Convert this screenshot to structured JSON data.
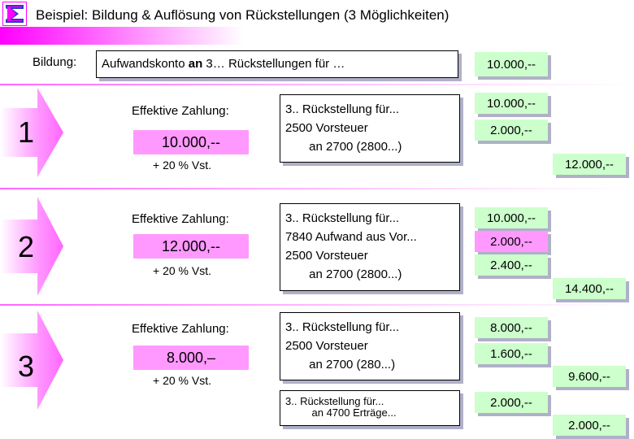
{
  "title": "Beispiel: Bildung & Auflösung von Rückstellungen (3 Möglichkeiten)",
  "bildung": {
    "label": "Bildung:",
    "text": "Aufwandskonto an 3… Rückstellungen für …",
    "value": "10.000,--"
  },
  "cases": [
    {
      "number": "1",
      "eff_label": "Effektive Zahlung:",
      "amount": "10.000,--",
      "vst": "+ 20 % Vst.",
      "entry": [
        "3.. Rückstellung für...",
        "2500 Vorsteuer",
        "       an 2700 (2800...)"
      ],
      "values": [
        "10.000,--",
        "2.000,--"
      ],
      "total": "12.000,--"
    },
    {
      "number": "2",
      "eff_label": "Effektive Zahlung:",
      "amount": "12.000,--",
      "vst": "+ 20 % Vst.",
      "entry": [
        "3.. Rückstellung für...",
        "7840 Aufwand aus Vor...",
        "2500 Vorsteuer",
        "       an 2700 (2800...)"
      ],
      "values": [
        "10.000,--",
        "2.000,--",
        "2.400,--"
      ],
      "total": "14.400,--"
    },
    {
      "number": "3",
      "eff_label": "Effektive Zahlung:",
      "amount": "8.000,–",
      "vst": "+ 20 % Vst.",
      "entry": [
        "3.. Rückstellung für...",
        "2500 Vorsteuer",
        "       an 2700 (280...)"
      ],
      "values": [
        "8.000,--",
        "1.600,--"
      ],
      "total": "9.600,--",
      "entry2": [
        "3.. Rückstellung für...",
        "         an 4700 Erträge..."
      ],
      "value2": "2.000,--",
      "total2": "2.000,--"
    }
  ],
  "colors": {
    "accent": "#ff00ff",
    "pink": "#ff99ff",
    "green": "#ccffcc"
  }
}
